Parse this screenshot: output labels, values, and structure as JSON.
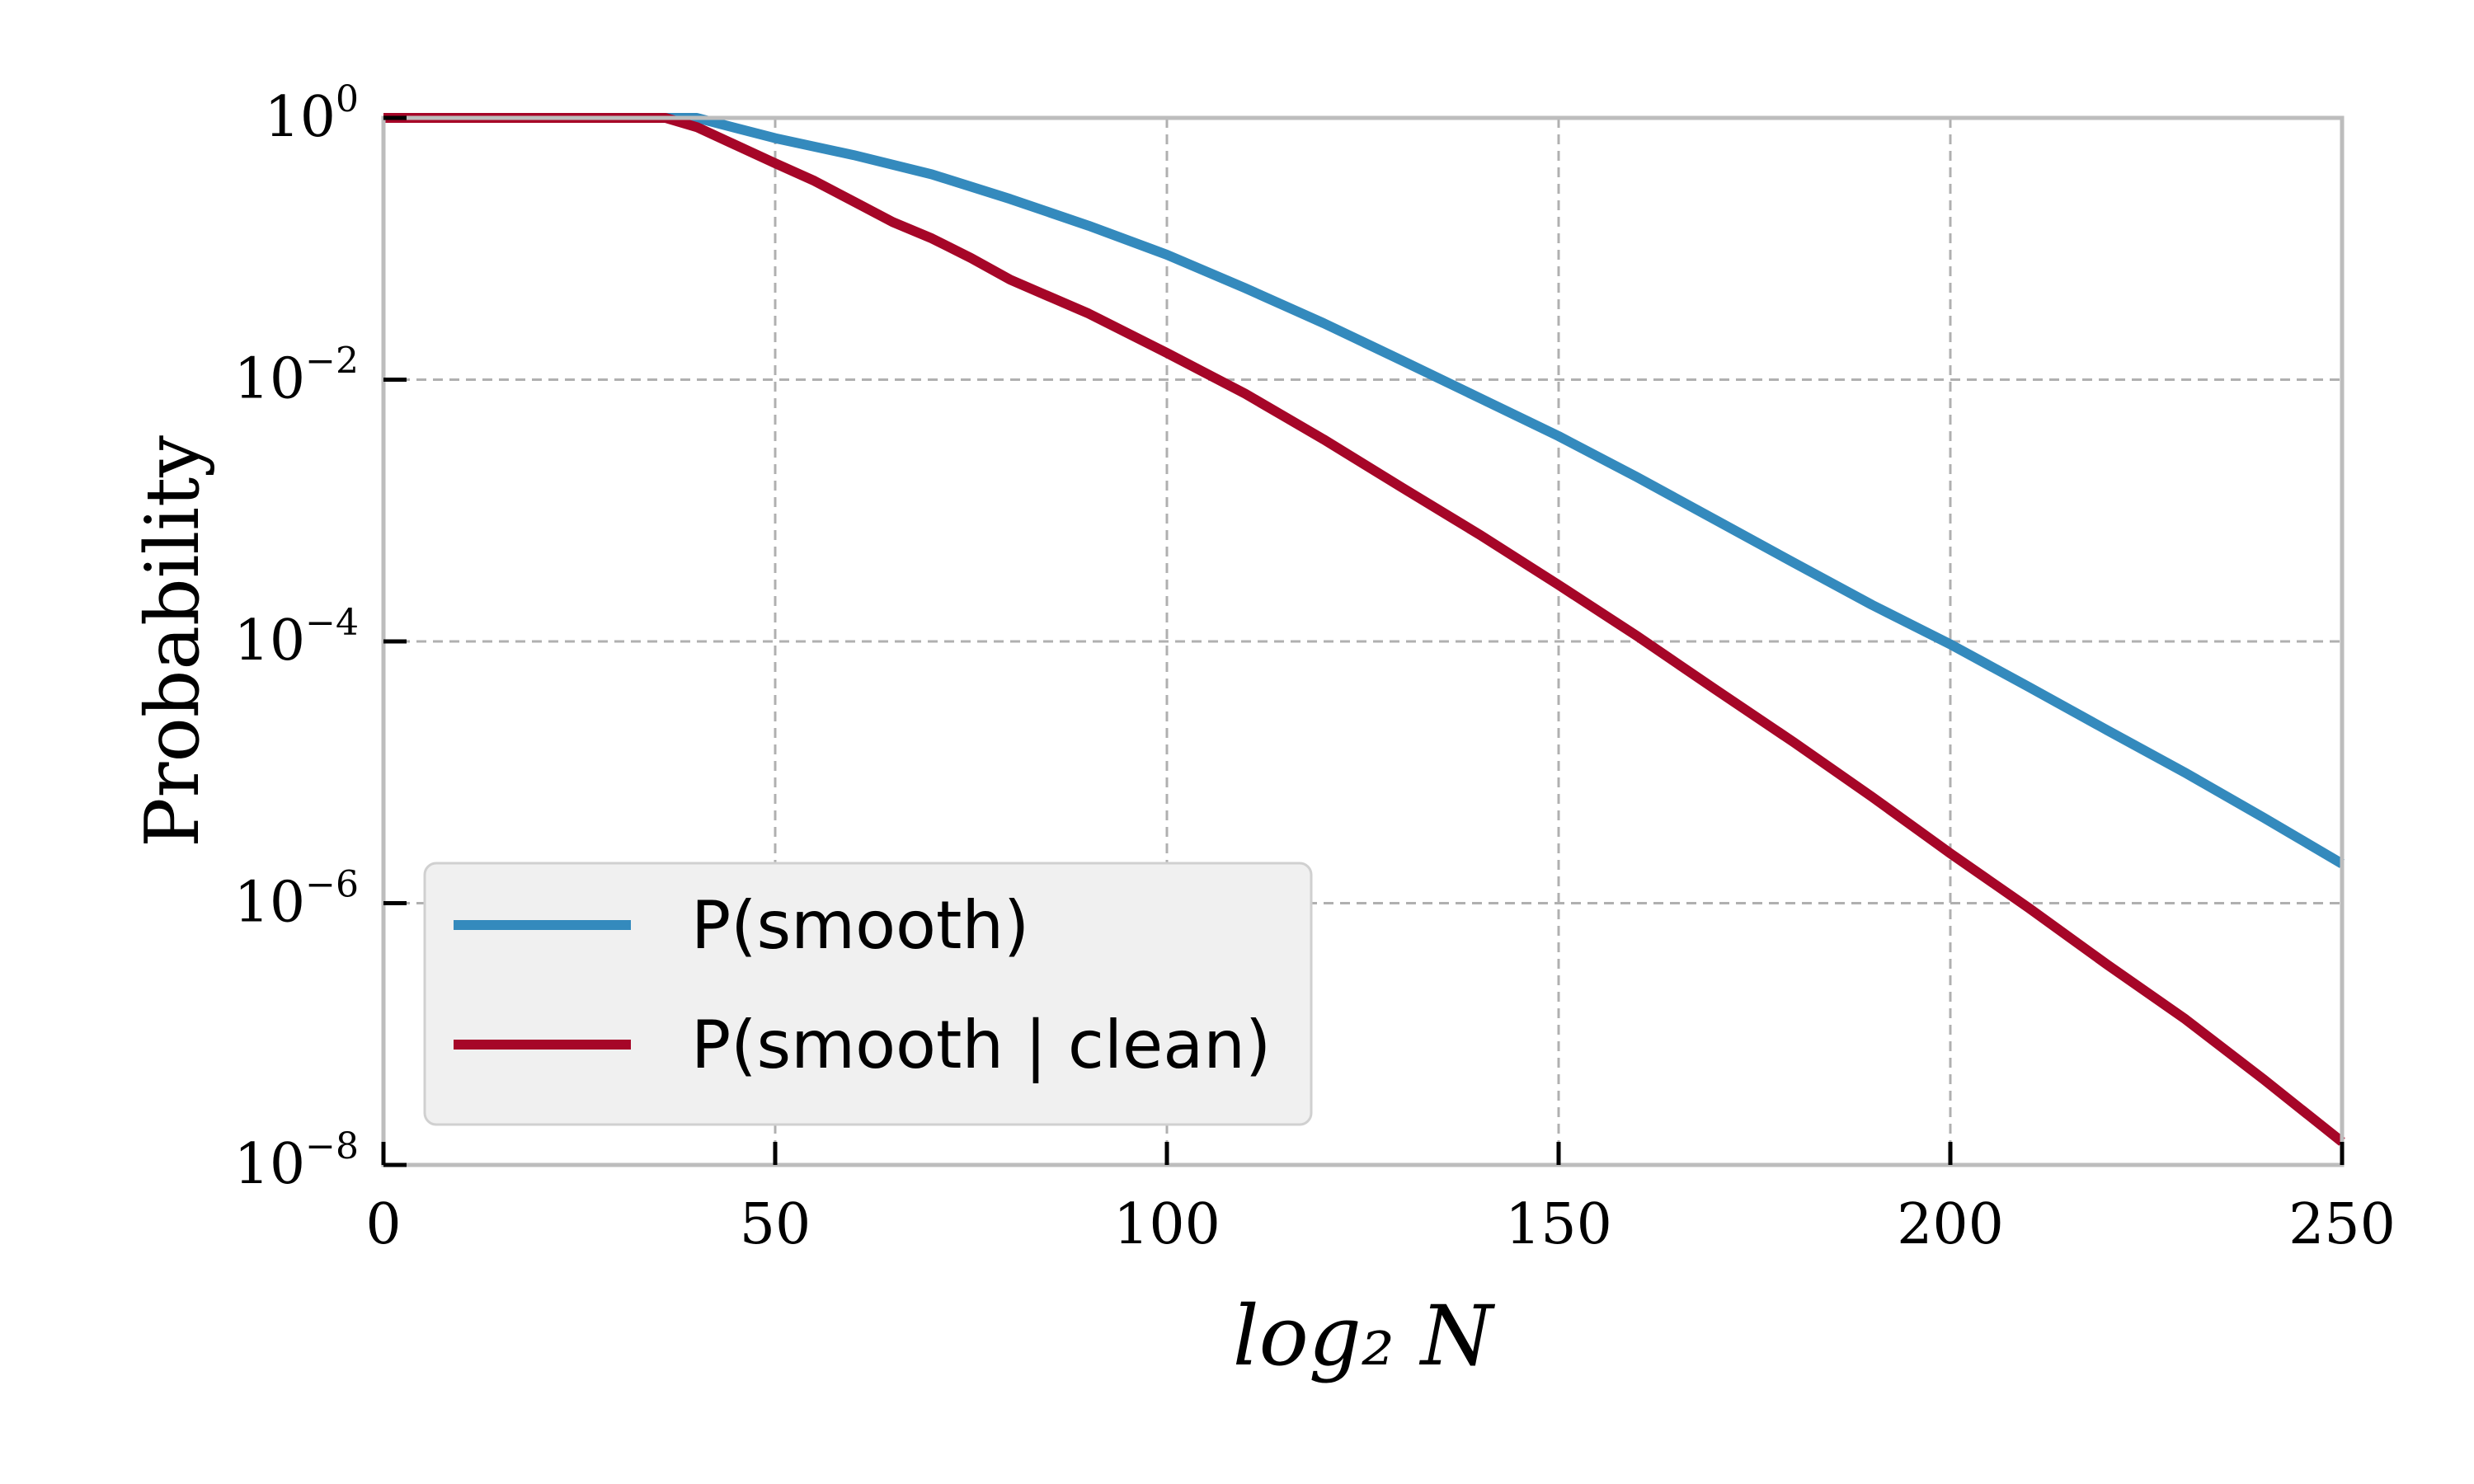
{
  "chart_data": {
    "type": "line",
    "title": "",
    "xlabel": "log₂ N",
    "ylabel": "Probability",
    "xlim": [
      0,
      250
    ],
    "ylim": [
      1e-08,
      1
    ],
    "yscale": "log",
    "grid": true,
    "legend_position": "lower-left",
    "xticks": [
      0,
      50,
      100,
      150,
      200,
      250
    ],
    "xtick_labels": [
      "0",
      "50",
      "100",
      "150",
      "200",
      "250"
    ],
    "yticks": [
      1,
      0.01,
      0.0001,
      1e-06,
      1e-08
    ],
    "ytick_labels": [
      {
        "base": "10",
        "exp": "0"
      },
      {
        "base": "10",
        "exp": "−2"
      },
      {
        "base": "10",
        "exp": "−4"
      },
      {
        "base": "10",
        "exp": "−6"
      },
      {
        "base": "10",
        "exp": "−8"
      }
    ],
    "series": [
      {
        "name": "P(smooth)",
        "color": "#348abd",
        "x": [
          0,
          40,
          50,
          60,
          70,
          80,
          90,
          100,
          110,
          120,
          130,
          140,
          150,
          160,
          170,
          180,
          190,
          200,
          210,
          220,
          230,
          240,
          250
        ],
        "y": [
          1,
          1,
          0.7,
          0.52,
          0.37,
          0.24,
          0.15,
          0.09,
          0.05,
          0.027,
          0.014,
          0.0072,
          0.0037,
          0.0018,
          0.00085,
          0.0004,
          0.00019,
          9.5e-05,
          4.5e-05,
          2.1e-05,
          9.9e-06,
          4.5e-06,
          2e-06
        ]
      },
      {
        "name": "P(smooth | clean)",
        "color": "#a60628",
        "x": [
          0,
          36,
          40,
          50,
          55,
          60,
          65,
          70,
          75,
          80,
          90,
          100,
          110,
          120,
          130,
          140,
          150,
          160,
          170,
          180,
          190,
          200,
          210,
          220,
          230,
          240,
          250
        ],
        "y": [
          1,
          1,
          0.85,
          0.45,
          0.33,
          0.23,
          0.16,
          0.12,
          0.085,
          0.058,
          0.032,
          0.016,
          0.0078,
          0.0035,
          0.0015,
          0.00065,
          0.00027,
          0.00011,
          4.3e-05,
          1.7e-05,
          6.5e-06,
          2.4e-06,
          9.2e-07,
          3.4e-07,
          1.3e-07,
          4.5e-08,
          1.5e-08
        ]
      }
    ]
  }
}
